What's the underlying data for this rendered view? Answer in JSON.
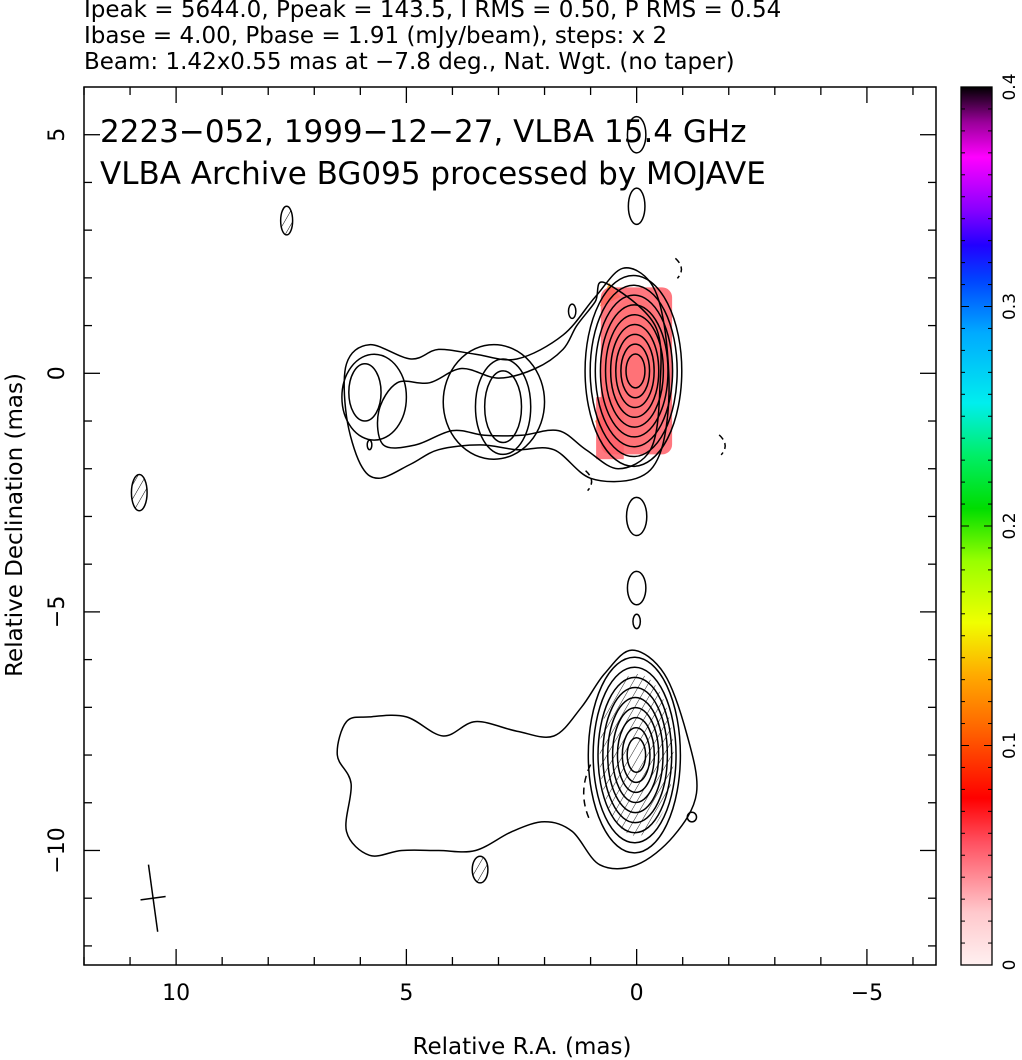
{
  "header": {
    "line1": "Ipeak = 5644.0, Ppeak = 143.5, I RMS = 0.50, P RMS = 0.54",
    "line2": "Ibase = 4.00, Pbase = 1.91 (mJy/beam), steps: x 2",
    "line3": "Beam: 1.42x0.55 mas at −7.8 deg., Nat. Wgt. (no taper)"
  },
  "chart_data": {
    "type": "contour",
    "title": "",
    "annotations": [
      "2223−052, 1999−12−27, VLBA 15.4 GHz",
      "VLBA Archive BG095 processed by MOJAVE"
    ],
    "xlabel": "Relative R.A. (mas)",
    "ylabel": "Relative Declination (mas)",
    "xlim": [
      12,
      -6.5
    ],
    "ylim": [
      -12.4,
      6
    ],
    "xticks": [
      10,
      5,
      0,
      -5
    ],
    "xtick_labels": [
      "10",
      "5",
      "0",
      "−5"
    ],
    "yticks": [
      5,
      0,
      -5,
      -10
    ],
    "ytick_labels": [
      "5",
      "0",
      "−5",
      "−10"
    ],
    "colorbar": {
      "min": 0,
      "max": 0.4,
      "ticks": [
        0,
        0.1,
        0.2,
        0.3,
        0.4
      ],
      "tick_labels": [
        "0",
        "0.1",
        "0.2",
        "0.3",
        "0.4"
      ]
    },
    "beam": {
      "major_mas": 1.42,
      "minor_mas": 0.55,
      "pa_deg": -7.8,
      "center": [
        10.5,
        -11
      ]
    },
    "components": [
      {
        "name": "core",
        "ra": 0,
        "dec": 0,
        "levels": 10,
        "polarized": true
      },
      {
        "name": "knot",
        "ra": 2.9,
        "dec": -0.7,
        "levels": 3
      },
      {
        "name": "jet-lobe",
        "ra": 5.9,
        "dec": -0.5,
        "levels": 2
      },
      {
        "name": "counter-image-core",
        "ra": 0,
        "dec": -8,
        "levels": 9,
        "hatched": true
      }
    ],
    "small_blobs": [
      {
        "ra": 7.6,
        "dec": 3.2,
        "rx": 0.13,
        "ry": 0.3,
        "hatched": true
      },
      {
        "ra": 0,
        "dec": 3.5,
        "rx": 0.18,
        "ry": 0.38
      },
      {
        "ra": 0,
        "dec": 5,
        "rx": 0.2,
        "ry": 0.38
      },
      {
        "ra": 0,
        "dec": -3,
        "rx": 0.22,
        "ry": 0.4
      },
      {
        "ra": 0,
        "dec": -4.5,
        "rx": 0.2,
        "ry": 0.35
      },
      {
        "ra": 0,
        "dec": -5.2,
        "rx": 0.08,
        "ry": 0.15
      },
      {
        "ra": 10.8,
        "dec": -2.5,
        "rx": 0.17,
        "ry": 0.38,
        "hatched": true
      },
      {
        "ra": 1.4,
        "dec": 1.3,
        "rx": 0.08,
        "ry": 0.15
      },
      {
        "ra": 5.8,
        "dec": -1.5,
        "rx": 0.05,
        "ry": 0.1
      },
      {
        "ra": 3.4,
        "dec": -10.4,
        "rx": 0.17,
        "ry": 0.28,
        "hatched": true
      },
      {
        "ra": -1.2,
        "dec": -9.3,
        "rx": 0.1,
        "ry": 0.1
      }
    ]
  }
}
